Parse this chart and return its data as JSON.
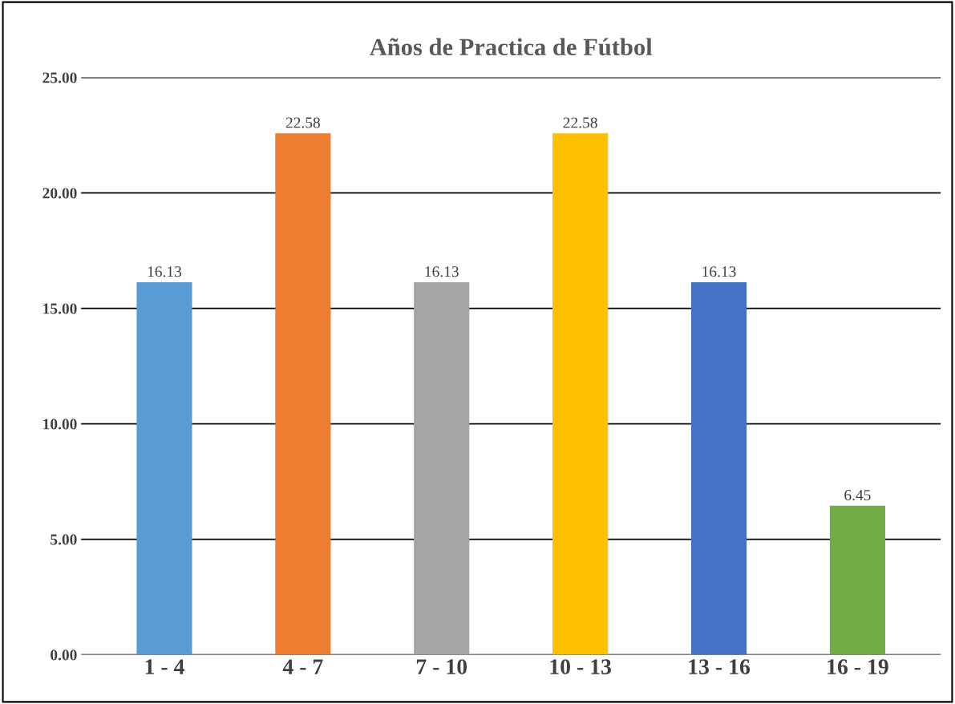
{
  "chart_data": {
    "type": "bar",
    "title": "Años de Practica de Fútbol",
    "categories": [
      "1 - 4",
      "4 - 7",
      "7 - 10",
      "10 - 13",
      "13 - 16",
      "16 - 19"
    ],
    "values": [
      16.13,
      22.58,
      16.13,
      22.58,
      16.13,
      6.45
    ],
    "colors": [
      "#5b9bd5",
      "#ed7d31",
      "#a5a5a5",
      "#ffc000",
      "#4472c4",
      "#70ad47"
    ],
    "ylim": [
      0,
      25
    ],
    "yticks": [
      {
        "value": 0,
        "label": "0.00"
      },
      {
        "value": 5,
        "label": "5.00"
      },
      {
        "value": 10,
        "label": "10.00"
      },
      {
        "value": 15,
        "label": "15.00"
      },
      {
        "value": 20,
        "label": "20.00"
      },
      {
        "value": 25,
        "label": "25.00"
      }
    ],
    "grid": "y",
    "data_labels": true
  }
}
